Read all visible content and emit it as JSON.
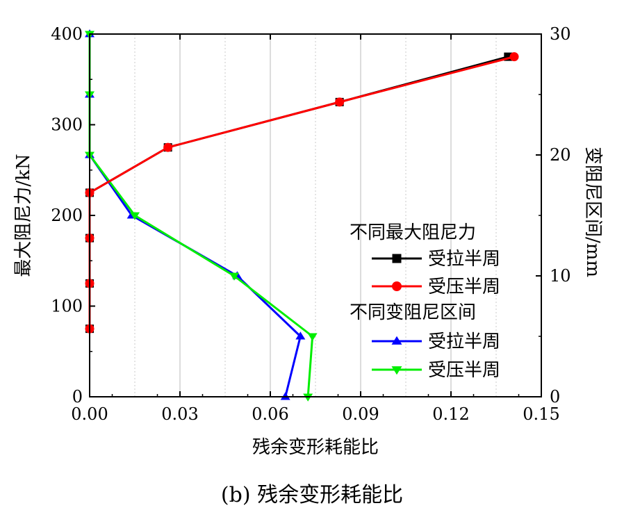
{
  "chart_data": {
    "type": "line",
    "xlabel": "残余变形耗能比",
    "ylabel_left": "最大阻尼力/kN",
    "ylabel_right": "变阻尼区间/mm",
    "xlim": [
      0,
      0.15
    ],
    "ylim_left": [
      0,
      400
    ],
    "ylim_right": [
      0,
      30
    ],
    "xticks": [
      "0.00",
      "0.03",
      "0.06",
      "0.09",
      "0.12",
      "0.15"
    ],
    "yticks_left": [
      "0",
      "100",
      "200",
      "300",
      "400"
    ],
    "yticks_right": [
      "0",
      "10",
      "20",
      "30"
    ],
    "grid": "vertical dotted",
    "legend_placement": "right",
    "legend": {
      "group1_title": "不同最大阻尼力",
      "group2_title": "不同变阻尼区间"
    },
    "series": [
      {
        "name": "受拉半周",
        "group": "不同最大阻尼力",
        "axis": "left",
        "color": "#000000",
        "marker": "square",
        "points": [
          [
            0.0,
            75
          ],
          [
            0.0,
            125
          ],
          [
            0.0,
            175
          ],
          [
            0.0,
            225
          ],
          [
            0.026,
            275
          ],
          [
            0.083,
            325
          ],
          [
            0.139,
            375
          ]
        ]
      },
      {
        "name": "受压半周",
        "group": "不同最大阻尼力",
        "axis": "left",
        "color": "#ff0000",
        "marker": "circle",
        "points": [
          [
            0.0,
            75
          ],
          [
            0.0,
            125
          ],
          [
            0.0,
            175
          ],
          [
            0.0,
            225
          ],
          [
            0.026,
            275
          ],
          [
            0.083,
            325
          ],
          [
            0.141,
            375
          ]
        ]
      },
      {
        "name": "受拉半周",
        "group": "不同变阻尼区间",
        "axis": "right",
        "color": "#0000ff",
        "marker": "triangle-up",
        "points": [
          [
            0.065,
            0
          ],
          [
            0.07,
            5
          ],
          [
            0.049,
            10
          ],
          [
            0.014,
            15
          ],
          [
            0.0,
            20
          ],
          [
            0.0,
            25
          ],
          [
            0.0,
            30
          ]
        ]
      },
      {
        "name": "受压半周",
        "group": "不同变阻尼区间",
        "axis": "right",
        "color": "#00ee00",
        "marker": "triangle-down",
        "points": [
          [
            0.0725,
            0
          ],
          [
            0.074,
            5
          ],
          [
            0.048,
            10
          ],
          [
            0.015,
            15
          ],
          [
            0.0,
            20
          ],
          [
            0.0,
            25
          ],
          [
            0.0,
            30
          ]
        ]
      }
    ]
  },
  "caption": "(b)  残余变形耗能比"
}
